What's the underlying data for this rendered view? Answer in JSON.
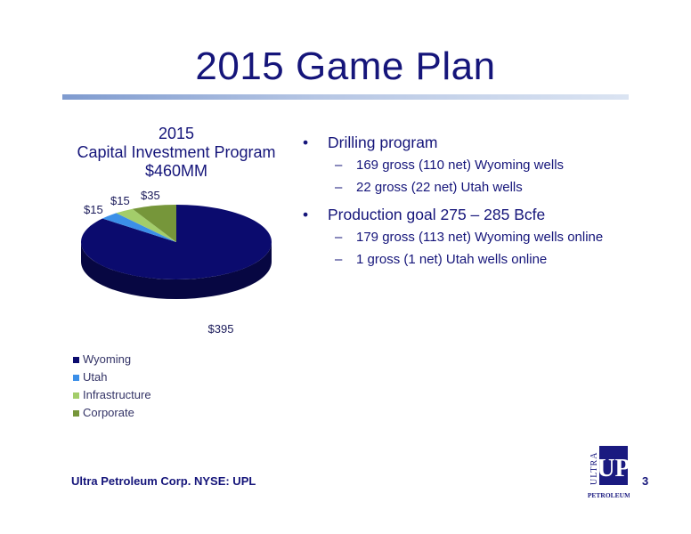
{
  "slide": {
    "title": "2015 Game Plan",
    "footer": "Ultra Petroleum Corp. NYSE: UPL",
    "page_number": "3",
    "logo": {
      "text_vertical": "ULTRA",
      "mark": "UP",
      "text_bottom": "PETROLEUM"
    }
  },
  "bullets": [
    {
      "text": "Drilling program",
      "sub": [
        "169 gross (110 net) Wyoming wells",
        "22 gross (22 net) Utah wells"
      ]
    },
    {
      "text": "Production goal 275 – 285 Bcfe",
      "sub": [
        "179 gross (113 net) Wyoming wells online",
        "1 gross (1 net) Utah wells online"
      ]
    }
  ],
  "chart_data": {
    "type": "pie",
    "title_lines": [
      "2015",
      "Capital Investment Program",
      "$460MM"
    ],
    "categories": [
      "Wyoming",
      "Utah",
      "Infrastructure",
      "Corporate"
    ],
    "values": [
      395,
      15,
      15,
      35
    ],
    "data_labels": [
      "$395",
      "$15",
      "$15",
      "$35"
    ],
    "colors": [
      "#0b0b6e",
      "#3b8fe8",
      "#a3cd6a",
      "#76963a"
    ],
    "legend_position": "bottom-left",
    "three_d": true
  }
}
